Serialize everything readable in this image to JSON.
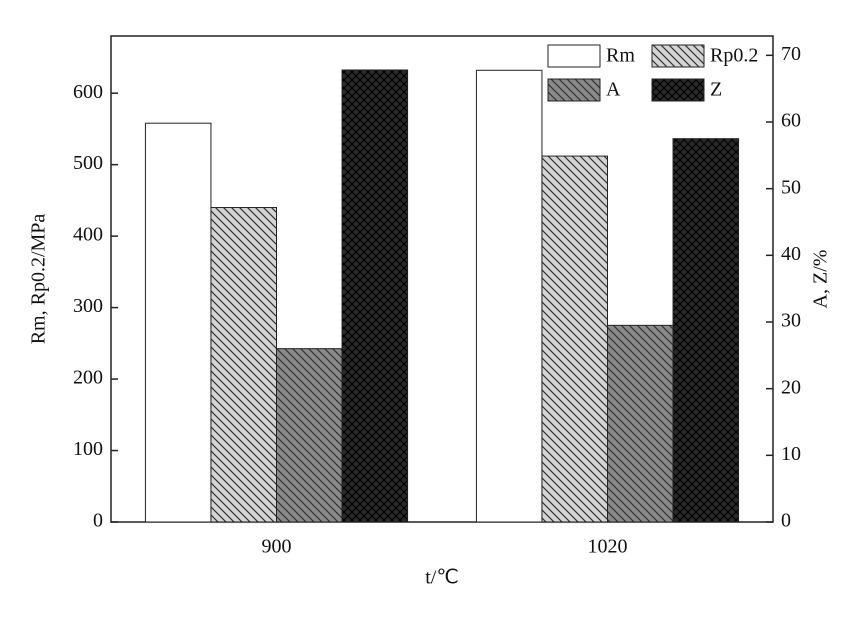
{
  "chart_data": {
    "type": "bar",
    "categories": [
      "900",
      "1020"
    ],
    "series": [
      {
        "name": "Rm",
        "color": "#ffffff",
        "hatch": "none",
        "values": [
          558,
          632
        ]
      },
      {
        "name": "Rp0.2",
        "color": "#d4d4d4",
        "hatch": "\\",
        "values": [
          440,
          512
        ]
      },
      {
        "name": "A",
        "color": "#8a8a8a",
        "hatch": "\\",
        "axis": "y2",
        "values": [
          26,
          29.5
        ]
      },
      {
        "name": "Z",
        "color": "#2a2a2a",
        "hatch": "x",
        "axis": "y2",
        "values": [
          67.8,
          57.5
        ]
      }
    ],
    "ylim": [
      0,
      680
    ],
    "yticks": [
      0,
      100,
      200,
      300,
      400,
      500,
      600
    ],
    "y2lim": [
      0,
      72.9
    ],
    "y2ticks": [
      0,
      10,
      20,
      30,
      40,
      50,
      60,
      70
    ],
    "xlabel": "t/℃",
    "ylabel": "Rm, Rp0.2/MPa",
    "y2label": "A, Z/%",
    "legend": "top-right"
  }
}
